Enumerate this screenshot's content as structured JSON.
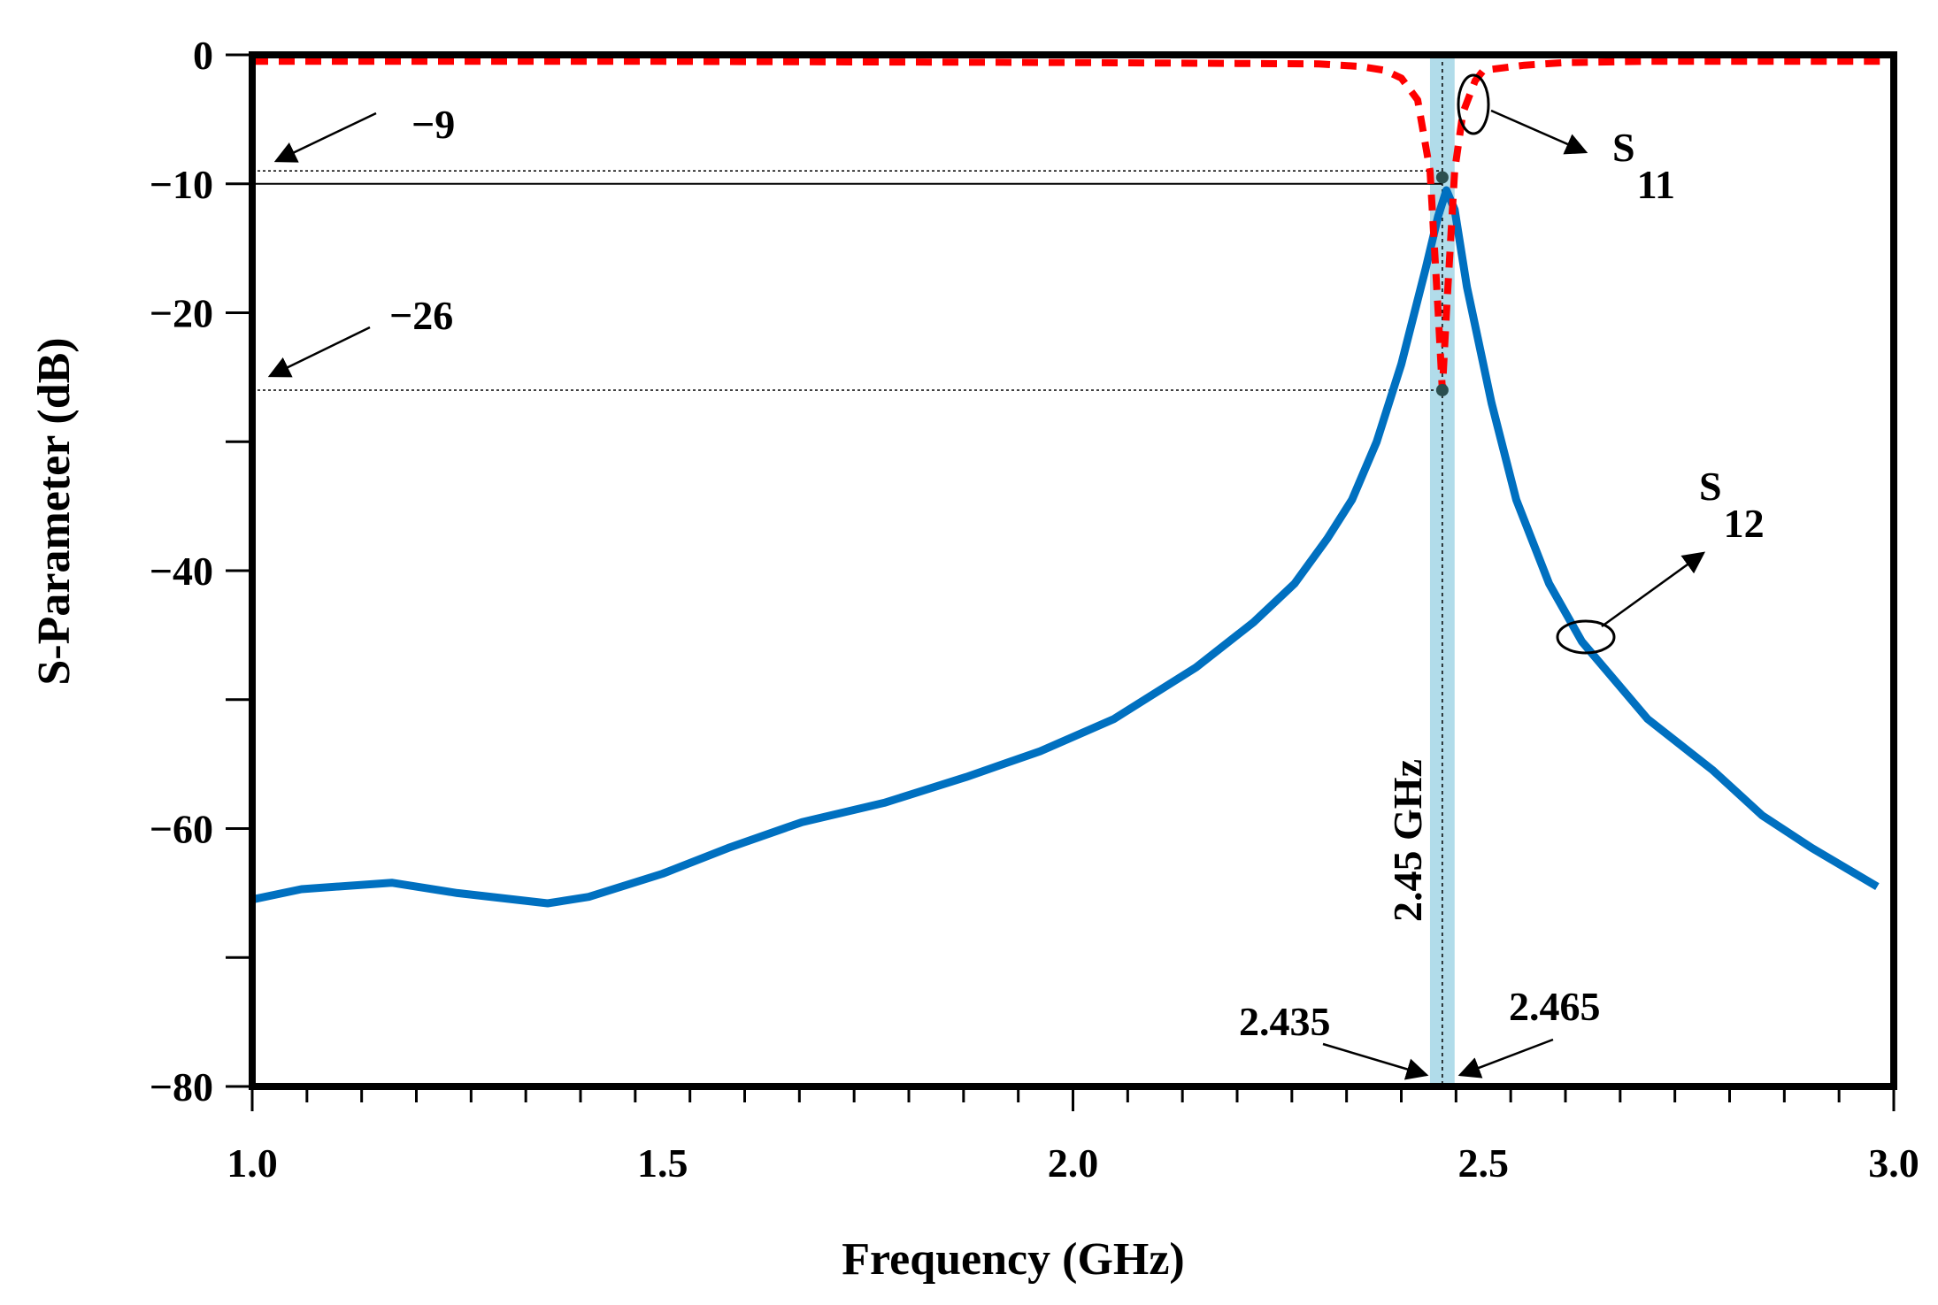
{
  "chart_data": {
    "type": "line",
    "xlabel": "Frequency (GHz)",
    "ylabel": "S-Parameter (dB)",
    "xlim": [
      1.0,
      3.0
    ],
    "ylim": [
      -80,
      0
    ],
    "xticks": [
      "1.0",
      "1.5",
      "2.0",
      "2.5",
      "3.0"
    ],
    "yticks": [
      {
        "value": 0,
        "label": "0"
      },
      {
        "value": -10,
        "label": "−10"
      },
      {
        "value": -20,
        "label": "−20"
      },
      {
        "value": -40,
        "label": "−40"
      },
      {
        "value": -60,
        "label": "−60"
      },
      {
        "value": -80,
        "label": "−80"
      }
    ],
    "series": [
      {
        "name": "S11",
        "name_main": "S",
        "name_sub": "11",
        "color": "#ff0000",
        "style": "dashed",
        "x": [
          1.0,
          1.5,
          2.0,
          2.3,
          2.35,
          2.38,
          2.4,
          2.42,
          2.435,
          2.445,
          2.45,
          2.455,
          2.465,
          2.475,
          2.49,
          2.5,
          2.55,
          2.6,
          2.7,
          3.0
        ],
        "y": [
          -0.5,
          -0.5,
          -0.6,
          -0.7,
          -0.9,
          -1.2,
          -1.8,
          -3.5,
          -9.0,
          -20.0,
          -26.0,
          -20.0,
          -9.0,
          -4.5,
          -2.0,
          -1.2,
          -0.8,
          -0.6,
          -0.5,
          -0.5
        ]
      },
      {
        "name": "S12",
        "name_main": "S",
        "name_sub": "12",
        "color": "#0070c0",
        "style": "solid",
        "x": [
          1.0,
          1.06,
          1.17,
          1.25,
          1.36,
          1.41,
          1.5,
          1.58,
          1.67,
          1.77,
          1.87,
          1.96,
          2.05,
          2.15,
          2.22,
          2.27,
          2.31,
          2.34,
          2.37,
          2.4,
          2.43,
          2.445,
          2.455,
          2.465,
          2.48,
          2.51,
          2.54,
          2.58,
          2.62,
          2.7,
          2.78,
          2.84,
          2.9,
          2.98
        ],
        "y": [
          -65.5,
          -64.7,
          -64.2,
          -65.0,
          -65.8,
          -65.3,
          -63.5,
          -61.5,
          -59.5,
          -58.0,
          -56.0,
          -54.0,
          -51.5,
          -47.5,
          -44.0,
          -41.0,
          -37.5,
          -34.5,
          -30.0,
          -24.0,
          -16.5,
          -12.5,
          -10.5,
          -12.0,
          -18.0,
          -27.0,
          -34.5,
          -41.0,
          -45.5,
          -51.5,
          -55.5,
          -59.0,
          -61.5,
          -64.5
        ]
      }
    ],
    "band": {
      "x0": 2.435,
      "x1": 2.465,
      "color": "#a8d8e8"
    },
    "center_line": {
      "x": 2.45,
      "label": "2.45 GHz"
    },
    "reference_lines": [
      {
        "y": -9,
        "label": "−9"
      },
      {
        "y": -10
      },
      {
        "y": -26,
        "label": "−26"
      }
    ],
    "markers": [
      {
        "x": 2.45,
        "y": -9.5
      },
      {
        "x": 2.45,
        "y": -26
      }
    ],
    "band_labels": [
      {
        "x": 2.435,
        "label": "2.435"
      },
      {
        "x": 2.465,
        "label": "2.465"
      }
    ],
    "grid": false
  }
}
